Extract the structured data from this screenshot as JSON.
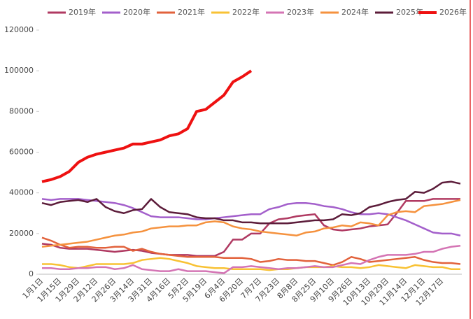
{
  "chart_data": {
    "type": "line",
    "categories": [
      "1月1日",
      null,
      "1月15日",
      null,
      "1月29日",
      null,
      "2月12日",
      null,
      "2月26日",
      null,
      "3月14日",
      null,
      "3月31日",
      null,
      "4月16日",
      null,
      "5月2日",
      null,
      "5月19日",
      null,
      "6月4日",
      null,
      "6月20日",
      null,
      "7月7日",
      null,
      "7月23日",
      null,
      "8月8日",
      null,
      "8月25日",
      null,
      "9月10日",
      null,
      "9月26日",
      null,
      "10月13日",
      null,
      "10月29日",
      null,
      "11月14日",
      null,
      "12月1日",
      null,
      "12月17日",
      null,
      null
    ],
    "ylim": [
      0,
      120000
    ],
    "yticks": [
      0,
      20000,
      40000,
      60000,
      80000,
      100000,
      120000
    ],
    "legend": "top",
    "series": [
      {
        "name": "2019年",
        "color": "#b03a62",
        "values": [
          15000,
          14500,
          13000,
          12500,
          12500,
          12500,
          12000,
          11500,
          11000,
          11500,
          12000,
          11500,
          10500,
          10000,
          9500,
          9500,
          9500,
          9000,
          9000,
          9000,
          11000,
          17000,
          17000,
          20000,
          20000,
          25000,
          27000,
          27500,
          28500,
          29000,
          29500,
          24000,
          22000,
          21500,
          22000,
          22500,
          23500,
          24000,
          24500,
          30000,
          36000,
          36000,
          36000,
          37000,
          37000,
          37000,
          37000
        ]
      },
      {
        "name": "2020年",
        "color": "#a35fcb",
        "values": [
          37000,
          36500,
          37000,
          37000,
          37000,
          36500,
          36000,
          35500,
          35000,
          34000,
          32500,
          30500,
          28500,
          28000,
          28000,
          28000,
          27500,
          27000,
          27000,
          27500,
          28000,
          28500,
          29000,
          29500,
          29500,
          32000,
          33000,
          34500,
          35000,
          35000,
          34500,
          33500,
          33000,
          32000,
          30500,
          29500,
          29500,
          30000,
          29500,
          28000,
          26500,
          24500,
          22500,
          20500,
          20000,
          20000,
          19000
        ]
      },
      {
        "name": "2021年",
        "color": "#e2623c",
        "values": [
          18000,
          16500,
          14500,
          13000,
          13500,
          13500,
          13000,
          13000,
          13500,
          13500,
          11500,
          12500,
          11000,
          10000,
          9500,
          9000,
          8500,
          8500,
          8500,
          8500,
          8000,
          8000,
          8000,
          7500,
          6000,
          6500,
          7500,
          7000,
          7000,
          6500,
          6500,
          5500,
          4500,
          6000,
          8500,
          7500,
          6000,
          6500,
          7000,
          7500,
          8000,
          8500,
          7000,
          6000,
          5500,
          5500,
          5000
        ]
      },
      {
        "name": "2022年",
        "color": "#f8c234",
        "values": [
          5000,
          5000,
          4500,
          3500,
          3000,
          4000,
          5000,
          5000,
          5000,
          5000,
          5500,
          7000,
          7500,
          8000,
          7500,
          6500,
          5500,
          4000,
          3500,
          3000,
          3000,
          2500,
          2500,
          2500,
          2500,
          2000,
          2500,
          2500,
          3000,
          3500,
          3500,
          3500,
          4000,
          3500,
          3500,
          3000,
          3500,
          4500,
          4000,
          3500,
          3000,
          4500,
          4000,
          3500,
          3500,
          2500,
          2500
        ]
      },
      {
        "name": "2023年",
        "color": "#d474b4",
        "values": [
          3000,
          3000,
          2500,
          2500,
          3000,
          3000,
          3500,
          3500,
          2500,
          3000,
          4500,
          2500,
          2000,
          1500,
          1500,
          2500,
          1500,
          1500,
          1500,
          1000,
          500,
          3500,
          3500,
          4000,
          3500,
          3000,
          2500,
          3000,
          3000,
          3500,
          4000,
          3500,
          3500,
          4500,
          5500,
          5000,
          7000,
          8500,
          9500,
          9500,
          9500,
          10000,
          11000,
          11000,
          12500,
          13500,
          14000
        ]
      },
      {
        "name": "2024年",
        "color": "#f5923e",
        "values": [
          13500,
          14000,
          14500,
          15000,
          15500,
          16000,
          17000,
          18000,
          19000,
          19500,
          20500,
          21000,
          22500,
          23000,
          23500,
          23500,
          24000,
          24000,
          25500,
          26000,
          25500,
          23500,
          22500,
          22000,
          21000,
          20500,
          20000,
          19500,
          19000,
          20500,
          21000,
          22500,
          23000,
          24000,
          23500,
          25500,
          25000,
          24000,
          29000,
          30500,
          31000,
          30500,
          33500,
          34000,
          34500,
          35500,
          36500
        ]
      },
      {
        "name": "2025年",
        "color": "#5c1c3a",
        "values": [
          35000,
          34000,
          35500,
          36000,
          36500,
          35500,
          37000,
          33000,
          31000,
          30000,
          31500,
          32000,
          37000,
          33000,
          30500,
          30000,
          29500,
          28000,
          27500,
          27500,
          26500,
          26500,
          25500,
          25500,
          25000,
          25000,
          25000,
          25000,
          25500,
          26000,
          26500,
          26500,
          27000,
          29500,
          29000,
          30000,
          33000,
          34000,
          35500,
          36500,
          37000,
          40500,
          40000,
          42000,
          45000,
          45500,
          44500
        ]
      },
      {
        "name": "2026年",
        "color": "#ee1111",
        "values": [
          45500,
          46500,
          48000,
          50500,
          55000,
          57500,
          59000,
          60000,
          61000,
          62000,
          64000,
          64000,
          65000,
          66000,
          68000,
          69000,
          71500,
          80000,
          81000,
          84500,
          88000,
          94500,
          97000,
          100000,
          null,
          null,
          null,
          null,
          null,
          null,
          null,
          null,
          null,
          null,
          null,
          null,
          null,
          null,
          null,
          null,
          null,
          null,
          null,
          null,
          null,
          null,
          null
        ]
      }
    ]
  }
}
